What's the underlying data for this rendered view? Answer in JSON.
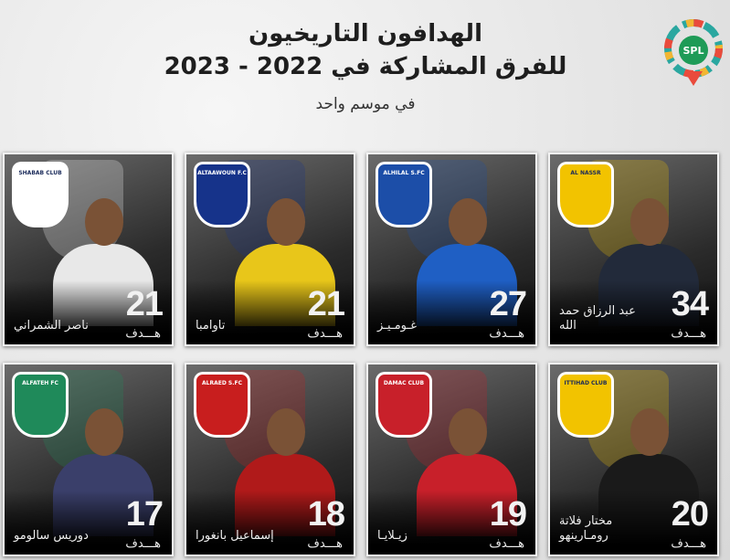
{
  "header": {
    "line1": "الهدافون التاريخيون",
    "line2": "للفرق المشاركة في 2022 - 2023",
    "line3": "في موسم واحد",
    "logo_text": "SPL"
  },
  "goal_label": "هـــدف",
  "cards": [
    {
      "team": "AL NASSR",
      "name": "عبد الرزاق حمد الله",
      "goals": "34",
      "color": "#f2c300",
      "kit": "#222a3a"
    },
    {
      "team": "ALHILAL S.FC",
      "name": "غـومـيـز",
      "goals": "27",
      "color": "#1c4ea8",
      "kit": "#1f5fc4"
    },
    {
      "team": "ALTAAWOUN F.C",
      "name": "تاوامبا",
      "goals": "21",
      "color": "#16338a",
      "kit": "#e8c61a"
    },
    {
      "team": "SHABAB CLUB",
      "name": "ناصر الشمراني",
      "goals": "21",
      "color": "#ffffff",
      "kit": "#e8e8e8"
    },
    {
      "team": "ITTIHAD CLUB",
      "name": "مختار فلاتة رومـارينهو",
      "goals": "20",
      "color": "#f2c300",
      "kit": "#1a1a1a"
    },
    {
      "team": "DAMAC CLUB",
      "name": "زيـلايـا",
      "goals": "19",
      "color": "#c8202a",
      "kit": "#c8202a"
    },
    {
      "team": "ALRAED S.FC",
      "name": "إسماعيل بانغورا",
      "goals": "18",
      "color": "#c81e1e",
      "kit": "#b01a1a"
    },
    {
      "team": "ALFATEH FC",
      "name": "دوريس سالومو",
      "goals": "17",
      "color": "#1f8a5a",
      "kit": "#3a3f6a"
    }
  ]
}
